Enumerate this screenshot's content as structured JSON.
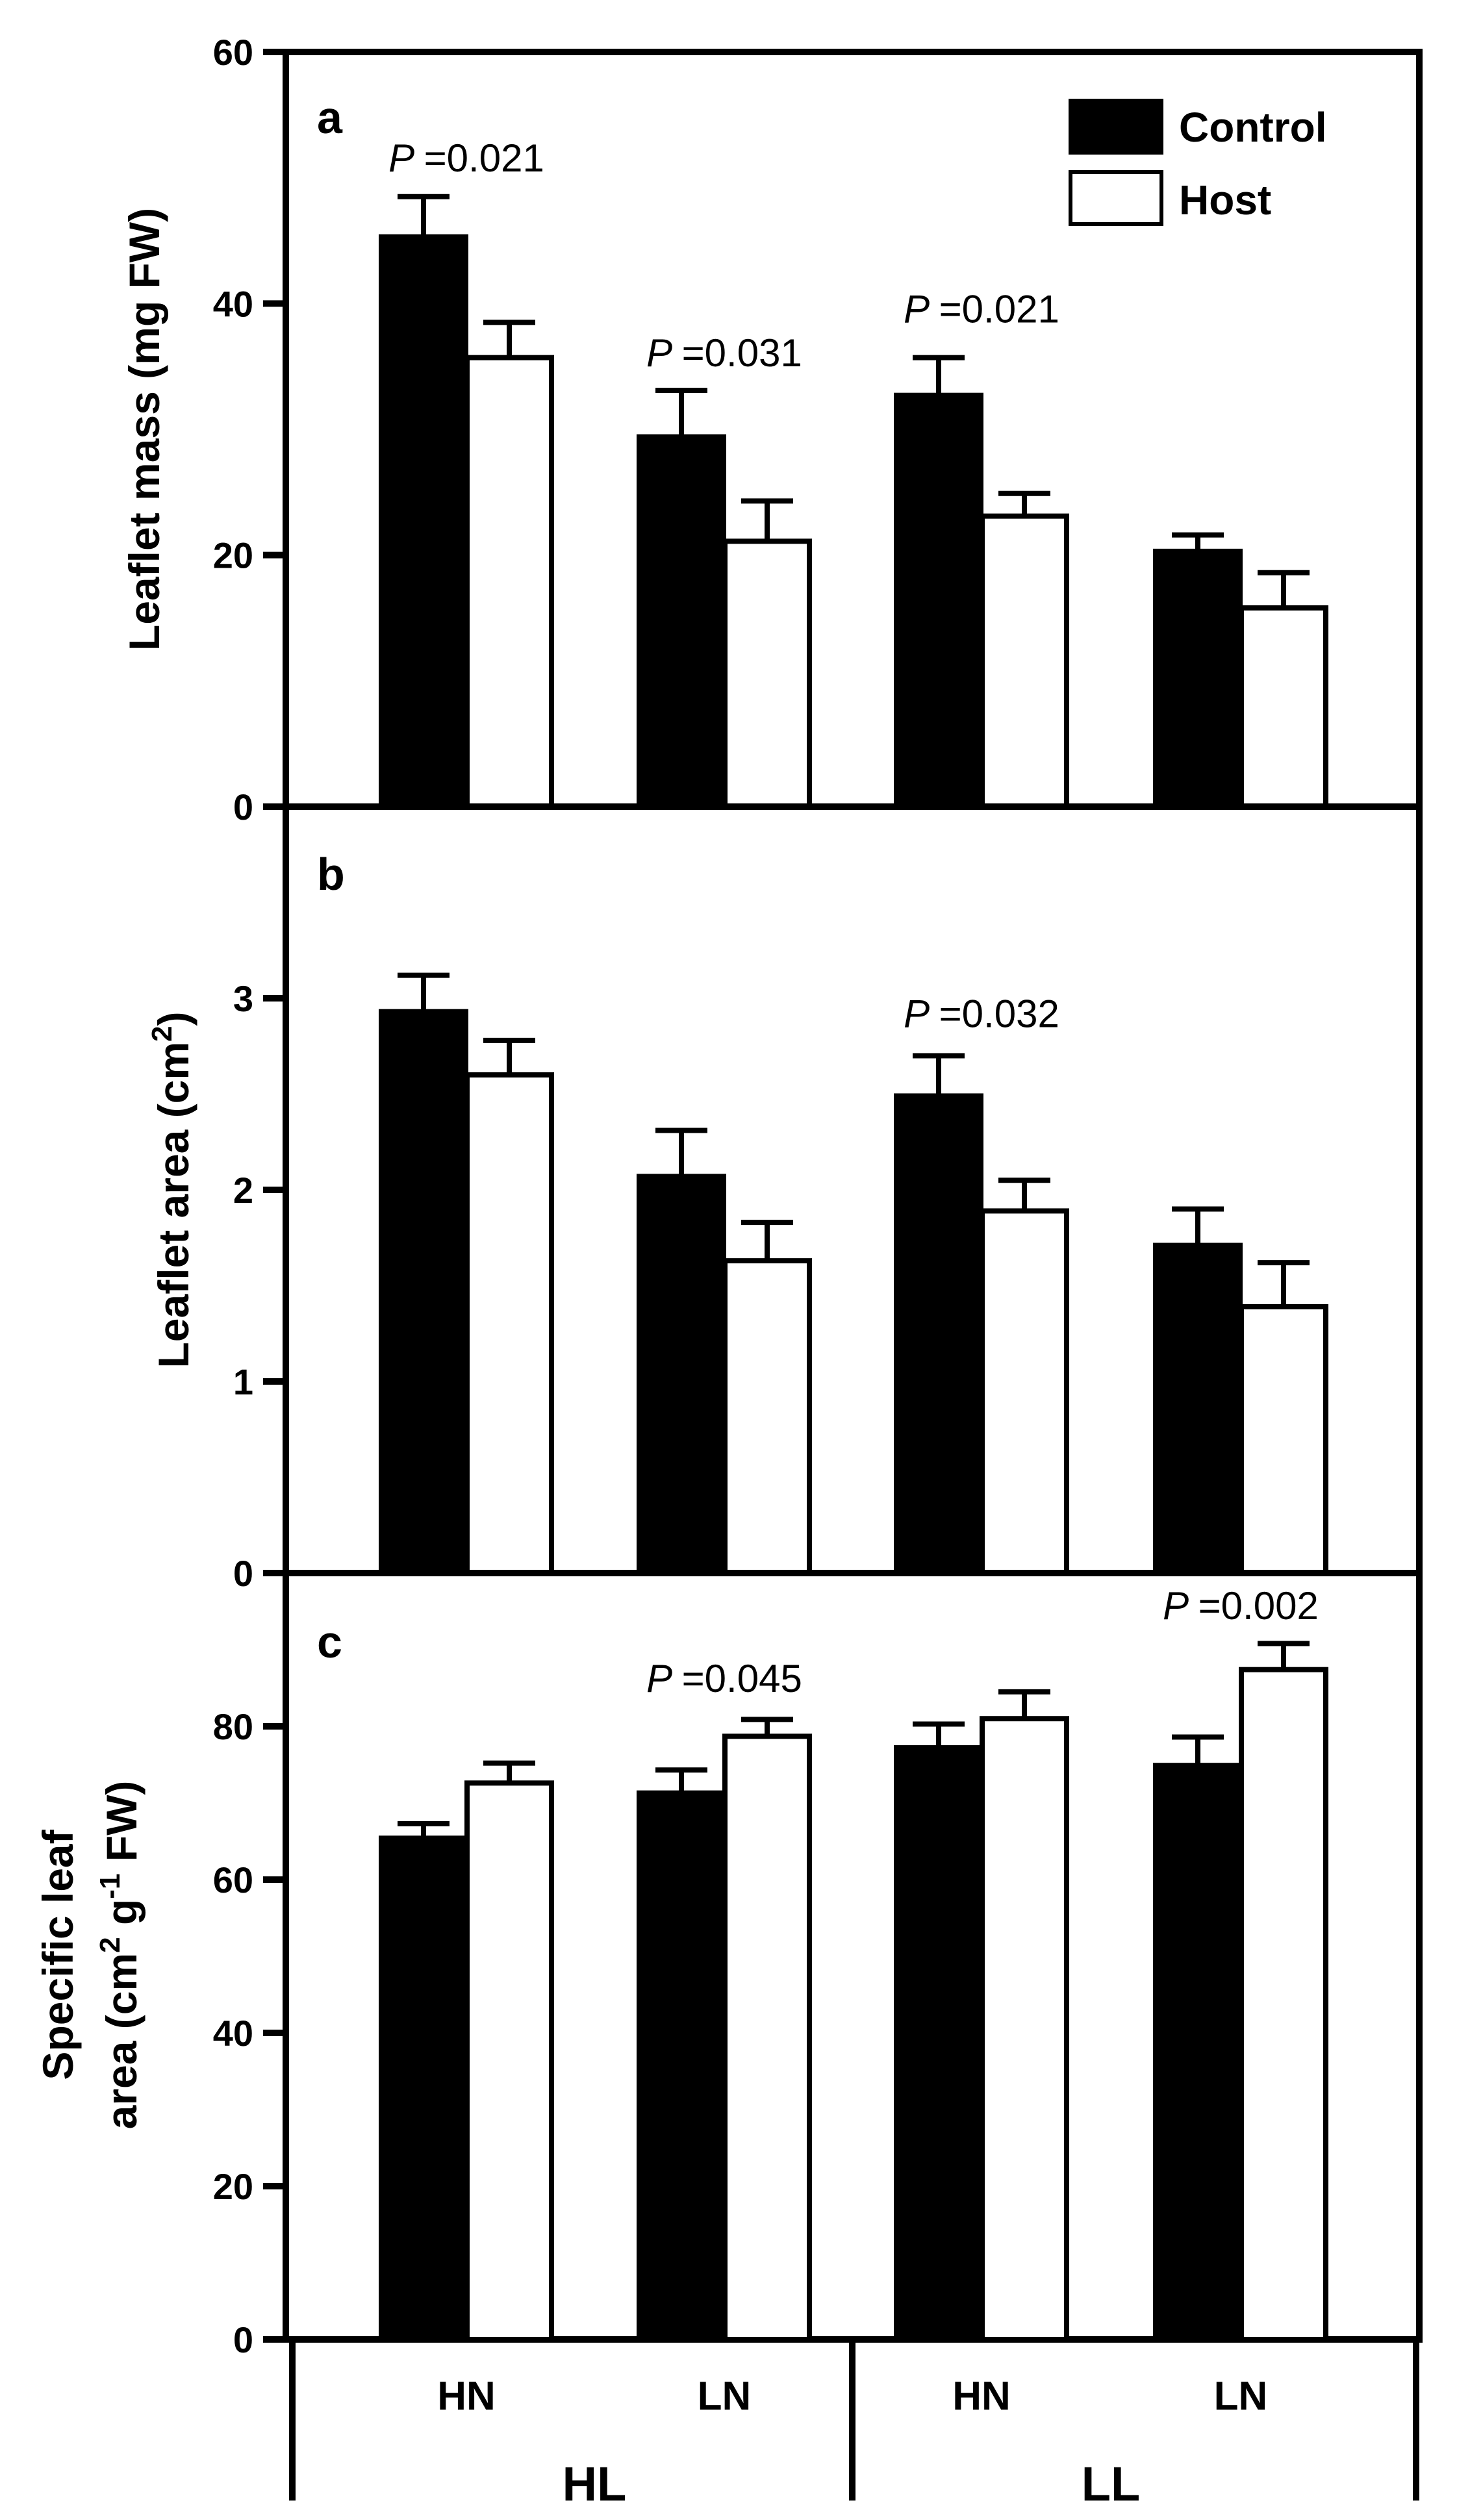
{
  "chart_data": [
    {
      "type": "bar",
      "panel_label": "a",
      "ylabel": "Leaflet mass (mg FW)",
      "ylim": [
        0,
        60
      ],
      "yticks": [
        0,
        20,
        40,
        60
      ],
      "categories": [
        "HN",
        "LN",
        "HN",
        "LN"
      ],
      "groups": [
        "HL",
        "LL"
      ],
      "series": [
        {
          "name": "Control",
          "values": [
            45.3,
            29.4,
            32.7,
            20.3
          ],
          "errors": [
            3.2,
            3.7,
            3.0,
            1.3
          ]
        },
        {
          "name": "Host",
          "values": [
            35.7,
            21.1,
            23.1,
            15.8
          ],
          "errors": [
            2.8,
            3.2,
            1.8,
            2.8
          ]
        }
      ],
      "annotations": [
        {
          "category_index": 0,
          "p_label": "P",
          "p_value": "=0.021",
          "y": 50.5
        },
        {
          "category_index": 1,
          "p_label": "P",
          "p_value": "=0.031",
          "y": 35.0
        },
        {
          "category_index": 2,
          "p_label": "P",
          "p_value": "=0.021",
          "y": 38.5
        }
      ],
      "legend": {
        "position": "top-right",
        "entries": [
          "Control",
          "Host"
        ]
      }
    },
    {
      "type": "bar",
      "panel_label": "b",
      "ylabel_main": "Leaflet area (cm",
      "ylabel_sup": "2",
      "ylabel_end": ")",
      "ylim": [
        0,
        4
      ],
      "yticks": [
        0,
        1,
        2,
        3
      ],
      "categories": [
        "HN",
        "LN",
        "HN",
        "LN"
      ],
      "groups": [
        "HL",
        "LL"
      ],
      "series": [
        {
          "name": "Control",
          "values": [
            2.93,
            2.07,
            2.49,
            1.71
          ],
          "errors": [
            0.19,
            0.24,
            0.21,
            0.19
          ]
        },
        {
          "name": "Host",
          "values": [
            2.6,
            1.63,
            1.89,
            1.39
          ],
          "errors": [
            0.18,
            0.2,
            0.16,
            0.23
          ]
        }
      ],
      "annotations": [
        {
          "category_index": 2,
          "p_label": "P",
          "p_value": "=0.032",
          "y": 2.85
        }
      ]
    },
    {
      "type": "bar",
      "panel_label": "c",
      "ylabel_line1": "Specific leaf",
      "ylabel_line2_a": "area (cm",
      "ylabel_line2_sup1": "2",
      "ylabel_line2_b": " g",
      "ylabel_line2_sup2": "-1",
      "ylabel_line2_c": " FW)",
      "ylim": [
        0,
        100
      ],
      "yticks": [
        0,
        20,
        40,
        60,
        80
      ],
      "categories": [
        "HN",
        "LN",
        "HN",
        "LN"
      ],
      "groups": [
        "HL",
        "LL"
      ],
      "series": [
        {
          "name": "Control",
          "values": [
            65.4,
            71.3,
            77.2,
            74.9
          ],
          "errors": [
            1.9,
            3.0,
            3.1,
            3.7
          ]
        },
        {
          "name": "Host",
          "values": [
            72.6,
            78.7,
            81.0,
            87.4
          ],
          "errors": [
            2.6,
            2.2,
            3.5,
            3.4
          ]
        }
      ],
      "annotations": [
        {
          "category_index": 1,
          "p_label": "P",
          "p_value": "=0.045",
          "y": 84.5
        },
        {
          "category_index": 3,
          "p_label": "P",
          "p_value": "=0.002",
          "y": 94.0
        }
      ]
    }
  ],
  "x_axis": {
    "categories": [
      "HN",
      "LN",
      "HN",
      "LN"
    ],
    "groups": [
      "HL",
      "LL"
    ]
  },
  "colors": {
    "control": "#000000",
    "host": "#ffffff",
    "axis": "#000000"
  }
}
